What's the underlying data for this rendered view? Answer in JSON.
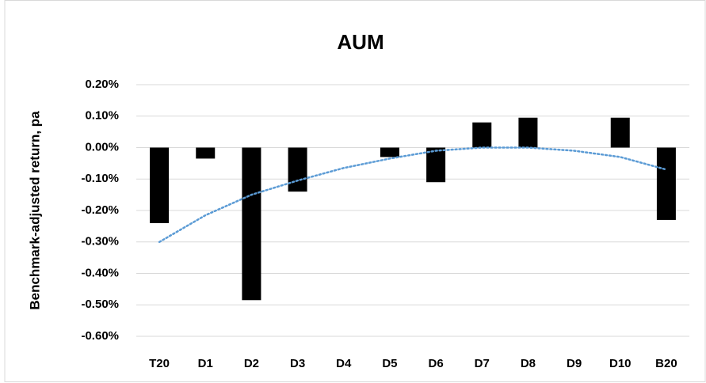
{
  "chart_data": {
    "type": "bar",
    "title": "AUM",
    "y_label": "Benchmark-adjusted return, pa",
    "categories": [
      "T20",
      "D1",
      "D2",
      "D3",
      "D4",
      "D5",
      "D6",
      "D7",
      "D8",
      "D9",
      "D10",
      "B20"
    ],
    "values": [
      -0.24,
      -0.035,
      -0.485,
      -0.14,
      0,
      -0.03,
      -0.11,
      0.08,
      0.095,
      0,
      0.095,
      -0.23
    ],
    "color": "#000000",
    "trendline": {
      "values": [
        -0.3,
        -0.215,
        -0.15,
        -0.105,
        -0.065,
        -0.035,
        -0.01,
        0,
        0,
        -0.01,
        -0.03,
        -0.07
      ],
      "color": "#5b9bd5",
      "style": "dotted"
    },
    "ylim": [
      -0.6,
      0.2
    ],
    "yticks": [
      {
        "value": -0.6,
        "label": "-0.60%"
      },
      {
        "value": -0.5,
        "label": "-0.50%"
      },
      {
        "value": -0.4,
        "label": "-0.40%"
      },
      {
        "value": -0.3,
        "label": "-0.30%"
      },
      {
        "value": -0.2,
        "label": "-0.20%"
      },
      {
        "value": -0.1,
        "label": "-0.10%"
      },
      {
        "value": 0,
        "label": "0.00%"
      },
      {
        "value": 0.1,
        "label": "0.10%"
      },
      {
        "value": 0.2,
        "label": "0.20%"
      }
    ],
    "grid": true
  }
}
